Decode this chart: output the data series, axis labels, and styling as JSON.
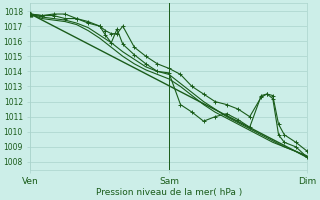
{
  "xlabel": "Pression niveau de la mer( hPa )",
  "bg_color": "#cceee8",
  "grid_color": "#aad4cc",
  "line_color": "#1a5c1a",
  "xlim": [
    0,
    48
  ],
  "ylim": [
    1007.5,
    1018.5
  ],
  "yticks": [
    1008,
    1009,
    1010,
    1011,
    1012,
    1013,
    1014,
    1015,
    1016,
    1017,
    1018
  ],
  "xtick_labels": [
    "Ven",
    "Sam",
    "Dim"
  ],
  "xtick_positions": [
    0,
    24,
    48
  ],
  "vline_positions": [
    24,
    48
  ],
  "trend_x": [
    0,
    48
  ],
  "trend_y": [
    1017.8,
    1008.3
  ],
  "series1_x": [
    0,
    2,
    4,
    6,
    8,
    10,
    12,
    14,
    16,
    18,
    20,
    22,
    24,
    26,
    28,
    30,
    32,
    34,
    36,
    38,
    40,
    42,
    44,
    46,
    48
  ],
  "series1_y": [
    1017.8,
    1017.5,
    1017.4,
    1017.3,
    1017.1,
    1016.7,
    1016.2,
    1015.6,
    1015.0,
    1014.5,
    1014.1,
    1013.8,
    1013.5,
    1013.0,
    1012.4,
    1011.8,
    1011.3,
    1010.9,
    1010.5,
    1010.1,
    1009.7,
    1009.3,
    1009.0,
    1008.7,
    1008.4
  ],
  "series2_x": [
    0,
    2,
    4,
    6,
    8,
    10,
    12,
    14,
    16,
    18,
    20,
    22,
    24,
    26,
    28,
    30,
    32,
    34,
    36,
    38,
    40,
    42,
    44,
    46,
    48
  ],
  "series2_y": [
    1017.8,
    1017.6,
    1017.5,
    1017.4,
    1017.2,
    1016.9,
    1016.4,
    1015.9,
    1015.3,
    1014.8,
    1014.3,
    1014.0,
    1013.8,
    1013.2,
    1012.6,
    1012.0,
    1011.5,
    1011.0,
    1010.6,
    1010.2,
    1009.8,
    1009.4,
    1009.0,
    1008.7,
    1008.3
  ],
  "series_bumpy_x": [
    0,
    2,
    4,
    6,
    8,
    10,
    12,
    13,
    14,
    15,
    16,
    18,
    20,
    22,
    24,
    26,
    28,
    30,
    32,
    34,
    36,
    38,
    40,
    41,
    42,
    43,
    44,
    46,
    48
  ],
  "series_bumpy_y": [
    1017.8,
    1017.7,
    1017.8,
    1017.8,
    1017.5,
    1017.3,
    1017.0,
    1016.7,
    1016.5,
    1016.5,
    1017.0,
    1015.6,
    1015.0,
    1014.5,
    1014.2,
    1013.8,
    1013.0,
    1012.5,
    1012.0,
    1011.8,
    1011.5,
    1011.0,
    1012.3,
    1012.5,
    1012.4,
    1010.5,
    1009.8,
    1009.3,
    1008.7
  ],
  "series_wiggly_x": [
    0,
    2,
    4,
    6,
    8,
    10,
    12,
    13,
    14,
    15,
    16,
    18,
    20,
    22,
    24,
    26,
    28,
    30,
    32,
    34,
    36,
    38,
    40,
    41,
    42,
    43,
    44,
    46,
    48
  ],
  "series_wiggly_y": [
    1017.8,
    1017.7,
    1017.7,
    1017.5,
    1017.5,
    1017.2,
    1017.0,
    1016.4,
    1015.9,
    1016.8,
    1015.8,
    1015.1,
    1014.5,
    1014.0,
    1013.9,
    1011.8,
    1011.3,
    1010.7,
    1011.0,
    1011.2,
    1010.8,
    1010.3,
    1012.4,
    1012.5,
    1012.2,
    1009.8,
    1009.3,
    1009.0,
    1008.3
  ]
}
